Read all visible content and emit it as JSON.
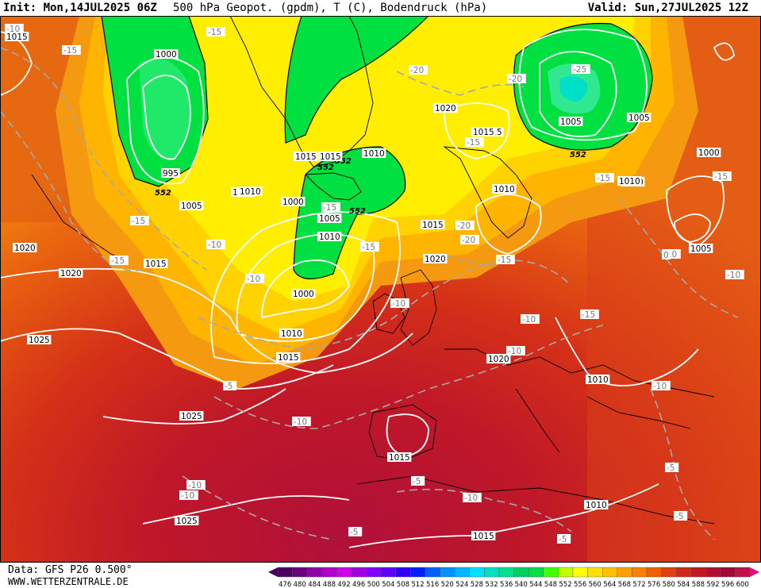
{
  "header": {
    "init": "Init: Mon,14JUL2025 06Z",
    "title": "500 hPa Geopot. (gpdm), T (C), Bodendruck (hPa)",
    "valid": "Valid: Sun,27JUL2025 12Z"
  },
  "footer": {
    "source": "Data: GFS P26 0.500°",
    "website": "WWW.WETTERZENTRALE.DE"
  },
  "legend": {
    "values": [
      "476",
      "480",
      "484",
      "488",
      "492",
      "496",
      "500",
      "504",
      "508",
      "512",
      "516",
      "520",
      "524",
      "528",
      "532",
      "536",
      "540",
      "544",
      "548",
      "552",
      "556",
      "560",
      "564",
      "568",
      "572",
      "576",
      "580",
      "584",
      "588",
      "592",
      "596",
      "600"
    ],
    "colors": [
      "#4b0060",
      "#6a0080",
      "#8f00a8",
      "#b000c8",
      "#d000e8",
      "#a000e0",
      "#8000ff",
      "#5a00ff",
      "#3000ff",
      "#0020ff",
      "#0060ff",
      "#0090ff",
      "#00b8ff",
      "#00e0ff",
      "#00e0c0",
      "#00e090",
      "#00d060",
      "#00e040",
      "#40ff00",
      "#c0ff00",
      "#ffff00",
      "#ffe000",
      "#ffc000",
      "#ffa000",
      "#ff8000",
      "#f06000",
      "#e04010",
      "#d02818",
      "#c01820",
      "#b01030",
      "#a00838",
      "#c0104a"
    ]
  },
  "pressure_labels": [
    "1015",
    "1000",
    "995",
    "1005",
    "1010",
    "1015",
    "1020",
    "1025",
    "1015",
    "1010",
    "1015",
    "1020",
    "1025",
    "1025",
    "1015",
    "1010",
    "1000",
    "1010",
    "1005",
    "1015",
    "1020",
    "1015",
    "1010",
    "1020",
    "1010",
    "1015",
    "1005",
    "1010",
    "1000",
    "1005",
    "1005",
    "1010",
    "1020",
    "1015",
    "1010",
    "1015",
    "1000",
    "1010"
  ],
  "temp_labels": [
    "-10",
    "-15",
    "-15",
    "-15",
    "-15",
    "-10",
    "-10",
    "-15",
    "-15",
    "-20",
    "-15",
    "-20",
    "-20",
    "-25",
    "-15",
    "-15",
    "-10",
    "-10",
    "-15",
    "-20",
    "-15",
    "-10",
    "-10",
    "-10",
    "-10",
    "-5",
    "-10",
    "-5",
    "-10",
    "-10",
    "-10",
    "-5",
    "-5",
    "-5",
    "-5",
    "0"
  ],
  "geopot_labels": [
    "552",
    "552",
    "552",
    "552",
    "552"
  ],
  "colors": {
    "isobar": "#ffffff",
    "isotherm": "#aaaaaa",
    "coast": "#000000"
  }
}
